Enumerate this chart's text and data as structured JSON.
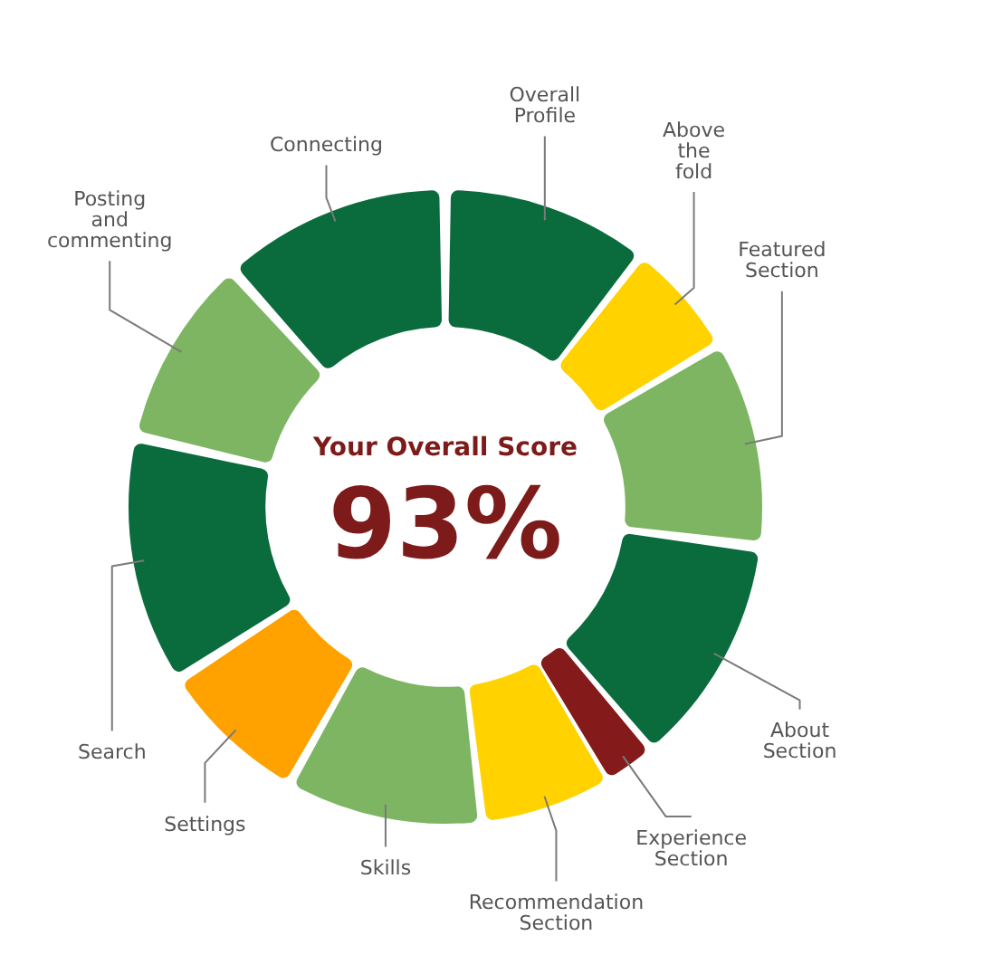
{
  "chart_data": {
    "type": "donut",
    "categories": [
      "Overall Profile",
      "Above the fold",
      "Featured Section",
      "About Section",
      "Experience Section",
      "Recommendation Section",
      "Skills",
      "Settings",
      "Search",
      "Posting and commenting",
      "Connecting"
    ],
    "values": [
      10.6,
      5.8,
      10.6,
      11.9,
      2.5,
      6.7,
      10.1,
      7.6,
      12.8,
      9.7,
      11.7
    ],
    "colors": [
      "#0a6b3d",
      "#ffd200",
      "#7db563",
      "#0a6b3d",
      "#841a1a",
      "#ffd200",
      "#7db563",
      "#ffa200",
      "#0a6b3d",
      "#7db563",
      "#0a6b3d"
    ],
    "annotations": [
      "Your Overall Score",
      "93%"
    ]
  }
}
